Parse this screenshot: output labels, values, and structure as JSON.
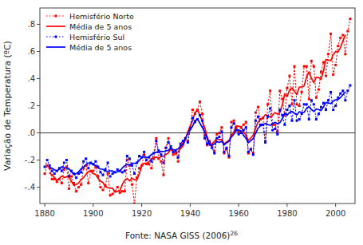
{
  "chart_data": {
    "type": "line",
    "title": "",
    "ylabel": "Variação de Temperatura (ºC)",
    "caption": "Fonte: NASA GISS (2006)",
    "caption_superscript": "26",
    "xlim": [
      1878,
      2008
    ],
    "ylim": [
      -0.52,
      0.92
    ],
    "xticks": [
      1880,
      1900,
      1920,
      1940,
      1960,
      1980,
      2000
    ],
    "yticks": [
      {
        "value": -0.4,
        "label": "-.4"
      },
      {
        "value": -0.2,
        "label": "-.2"
      },
      {
        "value": 0.0,
        "label": ".0"
      },
      {
        "value": 0.2,
        "label": ".2"
      },
      {
        "value": 0.4,
        "label": ".4"
      },
      {
        "value": 0.6,
        "label": ".6"
      },
      {
        "value": 0.8,
        "label": ".8"
      }
    ],
    "grid": false,
    "legend": "upper left",
    "x": [
      1880,
      1881,
      1882,
      1883,
      1884,
      1885,
      1886,
      1887,
      1888,
      1889,
      1890,
      1891,
      1892,
      1893,
      1894,
      1895,
      1896,
      1897,
      1898,
      1899,
      1900,
      1901,
      1902,
      1903,
      1904,
      1905,
      1906,
      1907,
      1908,
      1909,
      1910,
      1911,
      1912,
      1913,
      1914,
      1915,
      1916,
      1917,
      1918,
      1919,
      1920,
      1921,
      1922,
      1923,
      1924,
      1925,
      1926,
      1927,
      1928,
      1929,
      1930,
      1931,
      1932,
      1933,
      1934,
      1935,
      1936,
      1937,
      1938,
      1939,
      1940,
      1941,
      1942,
      1943,
      1944,
      1945,
      1946,
      1947,
      1948,
      1949,
      1950,
      1951,
      1952,
      1953,
      1954,
      1955,
      1956,
      1957,
      1958,
      1959,
      1960,
      1961,
      1962,
      1963,
      1964,
      1965,
      1966,
      1967,
      1968,
      1969,
      1970,
      1971,
      1972,
      1973,
      1974,
      1975,
      1976,
      1977,
      1978,
      1979,
      1980,
      1981,
      1982,
      1983,
      1984,
      1985,
      1986,
      1987,
      1988,
      1989,
      1990,
      1991,
      1992,
      1993,
      1994,
      1995,
      1996,
      1997,
      1998,
      1999,
      2000,
      2001,
      2002,
      2003,
      2004,
      2005,
      2006
    ],
    "series": [
      {
        "name": "Hemisfério Norte",
        "color": "#ff0000",
        "line_style": "dotted",
        "marker": "square",
        "values": [
          -0.3,
          -0.24,
          -0.26,
          -0.34,
          -0.34,
          -0.36,
          -0.34,
          -0.37,
          -0.27,
          -0.25,
          -0.41,
          -0.32,
          -0.37,
          -0.43,
          -0.4,
          -0.38,
          -0.26,
          -0.24,
          -0.37,
          -0.28,
          -0.28,
          -0.25,
          -0.32,
          -0.4,
          -0.42,
          -0.39,
          -0.3,
          -0.46,
          -0.45,
          -0.43,
          -0.4,
          -0.44,
          -0.43,
          -0.43,
          -0.2,
          -0.24,
          -0.38,
          -0.52,
          -0.33,
          -0.26,
          -0.24,
          -0.16,
          -0.23,
          -0.23,
          -0.26,
          -0.19,
          -0.04,
          -0.19,
          -0.21,
          -0.31,
          -0.11,
          -0.04,
          -0.12,
          -0.16,
          -0.15,
          -0.21,
          -0.1,
          -0.08,
          -0.04,
          -0.06,
          0.04,
          0.17,
          0.14,
          0.17,
          0.23,
          0.14,
          -0.02,
          -0.09,
          -0.06,
          -0.1,
          -0.14,
          -0.01,
          0.0,
          0.04,
          -0.15,
          -0.12,
          -0.18,
          0.08,
          0.09,
          0.04,
          0.01,
          0.04,
          0.06,
          0.08,
          -0.15,
          -0.12,
          -0.15,
          0.15,
          0.19,
          0.1,
          0.11,
          -0.06,
          0.21,
          0.31,
          0.06,
          0.06,
          0.01,
          0.31,
          0.25,
          0.13,
          0.33,
          0.42,
          0.21,
          0.49,
          0.21,
          0.2,
          0.3,
          0.49,
          0.49,
          0.25,
          0.53,
          0.49,
          0.26,
          0.32,
          0.45,
          0.52,
          0.42,
          0.58,
          0.73,
          0.43,
          0.5,
          0.64,
          0.7,
          0.72,
          0.58,
          0.75,
          0.84
        ]
      },
      {
        "name": "Média de 5 anos",
        "color": "#ff0000",
        "line_style": "solid",
        "marker": "none",
        "values": [
          null,
          null,
          -0.296,
          -0.308,
          -0.328,
          -0.35,
          -0.336,
          -0.318,
          -0.328,
          -0.324,
          -0.324,
          -0.356,
          -0.386,
          -0.38,
          -0.368,
          -0.342,
          -0.33,
          -0.306,
          -0.286,
          -0.284,
          -0.3,
          -0.306,
          -0.334,
          -0.356,
          -0.366,
          -0.394,
          -0.404,
          -0.406,
          -0.408,
          -0.436,
          -0.43,
          -0.426,
          -0.38,
          -0.348,
          -0.336,
          -0.354,
          -0.334,
          -0.346,
          -0.346,
          -0.302,
          -0.244,
          -0.224,
          -0.224,
          -0.214,
          -0.19,
          -0.182,
          -0.178,
          -0.188,
          -0.172,
          -0.172,
          -0.158,
          -0.148,
          -0.116,
          -0.136,
          -0.148,
          -0.14,
          -0.116,
          -0.098,
          -0.048,
          0.006,
          0.05,
          0.092,
          0.15,
          0.17,
          0.132,
          0.086,
          0.04,
          -0.026,
          -0.082,
          -0.08,
          -0.062,
          -0.042,
          -0.052,
          -0.048,
          -0.082,
          -0.066,
          -0.056,
          -0.018,
          0.008,
          0.052,
          0.048,
          0.046,
          0.008,
          -0.018,
          -0.056,
          -0.038,
          -0.016,
          0.034,
          0.08,
          0.098,
          0.11,
          0.134,
          0.126,
          0.116,
          0.13,
          0.15,
          0.138,
          0.152,
          0.206,
          0.288,
          0.268,
          0.316,
          0.332,
          0.306,
          0.282,
          0.338,
          0.338,
          0.346,
          0.412,
          0.45,
          0.404,
          0.37,
          0.41,
          0.408,
          0.394,
          0.458,
          0.54,
          0.536,
          0.532,
          0.576,
          0.6,
          0.598,
          0.628,
          0.678,
          0.718,
          null,
          null
        ]
      },
      {
        "name": "Hemisfério Sul",
        "color": "#0000ff",
        "line_style": "dotted",
        "marker": "square",
        "values": [
          -0.25,
          -0.2,
          -0.24,
          -0.28,
          -0.3,
          -0.28,
          -0.26,
          -0.28,
          -0.22,
          -0.2,
          -0.32,
          -0.28,
          -0.3,
          -0.33,
          -0.3,
          -0.29,
          -0.21,
          -0.19,
          -0.26,
          -0.22,
          -0.23,
          -0.21,
          -0.25,
          -0.29,
          -0.31,
          -0.27,
          -0.22,
          -0.32,
          -0.3,
          -0.29,
          -0.27,
          -0.28,
          -0.29,
          -0.28,
          -0.17,
          -0.19,
          -0.24,
          -0.3,
          -0.22,
          -0.17,
          -0.18,
          -0.14,
          -0.2,
          -0.18,
          -0.21,
          -0.15,
          -0.06,
          -0.13,
          -0.16,
          -0.22,
          -0.11,
          -0.07,
          -0.1,
          -0.14,
          -0.13,
          -0.18,
          -0.08,
          -0.06,
          -0.04,
          -0.07,
          0.03,
          0.11,
          0.08,
          0.1,
          0.13,
          0.09,
          -0.04,
          -0.08,
          -0.07,
          -0.11,
          -0.15,
          -0.04,
          -0.03,
          0.01,
          -0.14,
          -0.11,
          -0.17,
          0.04,
          0.07,
          0.02,
          -0.01,
          0.0,
          0.02,
          0.04,
          -0.14,
          -0.12,
          -0.16,
          0.09,
          0.12,
          0.06,
          0.06,
          -0.07,
          0.12,
          0.18,
          0.02,
          0.03,
          -0.01,
          0.17,
          0.13,
          0.06,
          0.17,
          0.2,
          0.09,
          0.24,
          0.09,
          0.1,
          0.14,
          0.21,
          0.21,
          0.1,
          0.24,
          0.21,
          0.1,
          0.14,
          0.19,
          0.22,
          0.17,
          0.24,
          0.3,
          0.17,
          0.2,
          0.26,
          0.29,
          0.31,
          0.24,
          0.31,
          0.35
        ]
      },
      {
        "name": "Média de 5 anos",
        "color": "#0000ff",
        "line_style": "solid",
        "marker": "none",
        "values": [
          null,
          null,
          -0.254,
          -0.26,
          -0.272,
          -0.28,
          -0.268,
          -0.248,
          -0.256,
          -0.26,
          -0.264,
          -0.286,
          -0.306,
          -0.3,
          -0.286,
          -0.264,
          -0.25,
          -0.234,
          -0.222,
          -0.222,
          -0.234,
          -0.24,
          -0.258,
          -0.266,
          -0.268,
          -0.282,
          -0.284,
          -0.28,
          -0.28,
          -0.292,
          -0.286,
          -0.282,
          -0.258,
          -0.242,
          -0.234,
          -0.236,
          -0.224,
          -0.224,
          -0.222,
          -0.202,
          -0.182,
          -0.174,
          -0.182,
          -0.176,
          -0.16,
          -0.146,
          -0.142,
          -0.144,
          -0.136,
          -0.138,
          -0.132,
          -0.128,
          -0.11,
          -0.124,
          -0.126,
          -0.118,
          -0.098,
          -0.086,
          -0.044,
          -0.006,
          0.022,
          0.05,
          0.09,
          0.102,
          0.072,
          0.04,
          0.006,
          -0.042,
          -0.09,
          -0.09,
          -0.08,
          -0.064,
          -0.07,
          -0.062,
          -0.088,
          -0.074,
          -0.062,
          -0.03,
          -0.01,
          0.024,
          0.02,
          0.014,
          -0.018,
          -0.04,
          -0.072,
          -0.058,
          -0.042,
          -0.002,
          0.034,
          0.052,
          0.058,
          0.07,
          0.062,
          0.056,
          0.068,
          0.078,
          0.068,
          0.076,
          0.104,
          0.146,
          0.13,
          0.152,
          0.158,
          0.144,
          0.132,
          0.156,
          0.15,
          0.152,
          0.18,
          0.194,
          0.172,
          0.158,
          0.176,
          0.172,
          0.164,
          0.192,
          0.224,
          0.22,
          0.216,
          0.234,
          0.244,
          0.246,
          0.26,
          0.282,
          0.3,
          null,
          null
        ]
      }
    ]
  }
}
